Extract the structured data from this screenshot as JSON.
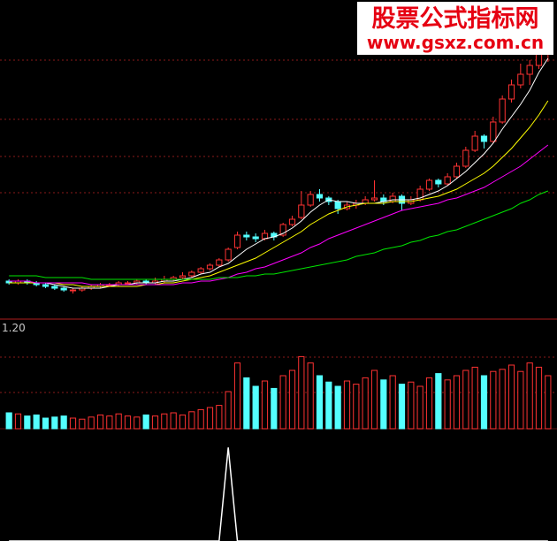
{
  "watermark": {
    "title": "股票公式指标网",
    "url": "www.gsxz.com.cn"
  },
  "chart_data": {
    "type": "candlestick",
    "ylim": [
      4,
      22
    ],
    "up_color": "#ff3232",
    "down_color": "#54ffff",
    "candles": [
      [
        6.1,
        6.2,
        5.9,
        6.0
      ],
      [
        6.0,
        6.2,
        5.9,
        6.1
      ],
      [
        6.1,
        6.2,
        5.9,
        6.0
      ],
      [
        6.0,
        6.1,
        5.8,
        5.9
      ],
      [
        5.9,
        6.0,
        5.7,
        5.8
      ],
      [
        5.8,
        5.9,
        5.6,
        5.7
      ],
      [
        5.7,
        5.8,
        5.5,
        5.6
      ],
      [
        5.6,
        5.7,
        5.4,
        5.6
      ],
      [
        5.6,
        5.8,
        5.5,
        5.7
      ],
      [
        5.7,
        5.9,
        5.6,
        5.8
      ],
      [
        5.8,
        6.0,
        5.7,
        5.9
      ],
      [
        5.9,
        6.0,
        5.8,
        5.9
      ],
      [
        5.9,
        6.1,
        5.8,
        6.0
      ],
      [
        6.0,
        6.1,
        5.9,
        6.0
      ],
      [
        6.0,
        6.2,
        5.9,
        6.1
      ],
      [
        6.1,
        6.2,
        5.9,
        6.0
      ],
      [
        6.0,
        6.3,
        5.9,
        6.1
      ],
      [
        6.1,
        6.4,
        6.0,
        6.2
      ],
      [
        6.2,
        6.4,
        6.1,
        6.3
      ],
      [
        6.3,
        6.6,
        6.2,
        6.4
      ],
      [
        6.4,
        6.7,
        6.3,
        6.6
      ],
      [
        6.6,
        6.9,
        6.5,
        6.8
      ],
      [
        6.8,
        7.1,
        6.7,
        7.0
      ],
      [
        7.0,
        7.4,
        6.9,
        7.3
      ],
      [
        7.3,
        8.0,
        7.2,
        7.9
      ],
      [
        8.0,
        8.9,
        7.9,
        8.7
      ],
      [
        8.7,
        8.9,
        8.4,
        8.6
      ],
      [
        8.6,
        8.8,
        8.3,
        8.5
      ],
      [
        8.5,
        9.0,
        8.4,
        8.8
      ],
      [
        8.8,
        8.9,
        8.4,
        8.6
      ],
      [
        8.7,
        9.4,
        8.6,
        9.3
      ],
      [
        9.3,
        9.8,
        9.2,
        9.6
      ],
      [
        9.7,
        11.2,
        9.6,
        10.4
      ],
      [
        10.4,
        11.2,
        10.3,
        11.0
      ],
      [
        11.0,
        11.3,
        10.6,
        10.8
      ],
      [
        10.8,
        10.9,
        10.4,
        10.6
      ],
      [
        10.6,
        10.7,
        9.9,
        10.2
      ],
      [
        10.2,
        10.6,
        10.1,
        10.4
      ],
      [
        10.4,
        10.7,
        10.2,
        10.5
      ],
      [
        10.5,
        10.9,
        10.4,
        10.7
      ],
      [
        10.7,
        11.8,
        10.6,
        10.8
      ],
      [
        10.8,
        11.0,
        10.4,
        10.6
      ],
      [
        10.6,
        11.1,
        10.5,
        10.9
      ],
      [
        10.9,
        11.0,
        10.1,
        10.5
      ],
      [
        10.5,
        10.9,
        10.4,
        10.7
      ],
      [
        10.7,
        11.5,
        10.6,
        11.3
      ],
      [
        11.3,
        11.9,
        11.2,
        11.8
      ],
      [
        11.8,
        11.9,
        11.4,
        11.6
      ],
      [
        11.6,
        12.2,
        11.5,
        12.0
      ],
      [
        12.0,
        12.8,
        11.9,
        12.6
      ],
      [
        12.6,
        13.7,
        12.5,
        13.5
      ],
      [
        13.5,
        14.6,
        13.4,
        14.3
      ],
      [
        14.3,
        14.4,
        13.6,
        14.0
      ],
      [
        14.0,
        15.4,
        13.9,
        15.1
      ],
      [
        15.1,
        16.6,
        15.0,
        16.4
      ],
      [
        16.4,
        17.5,
        16.2,
        17.2
      ],
      [
        17.2,
        18.4,
        17.0,
        17.8
      ],
      [
        17.8,
        18.6,
        17.2,
        18.3
      ],
      [
        18.3,
        20.4,
        18.1,
        19.6
      ],
      [
        19.6,
        21.2,
        18.5,
        20.5
      ]
    ],
    "series": [
      {
        "color": "#ffffff",
        "values": [
          6.0,
          6.0,
          6.0,
          6.0,
          6.0,
          5.9,
          5.8,
          5.7,
          5.7,
          5.7,
          5.7,
          5.8,
          5.9,
          5.9,
          6.0,
          6.0,
          6.0,
          6.1,
          6.1,
          6.2,
          6.3,
          6.5,
          6.6,
          6.9,
          7.1,
          7.5,
          7.9,
          8.2,
          8.5,
          8.6,
          8.8,
          9.1,
          9.5,
          10.0,
          10.4,
          10.7,
          10.6,
          10.6,
          10.5,
          10.5,
          10.5,
          10.6,
          10.7,
          10.7,
          10.7,
          10.8,
          11.0,
          11.2,
          11.5,
          11.9,
          12.3,
          12.8,
          13.3,
          13.9,
          14.7,
          15.4,
          16.1,
          16.9,
          17.9,
          18.7
        ]
      },
      {
        "color": "#ffff00",
        "values": [
          6.0,
          6.0,
          6.0,
          6.0,
          6.0,
          6.0,
          5.9,
          5.9,
          5.8,
          5.8,
          5.8,
          5.8,
          5.8,
          5.8,
          5.8,
          5.9,
          5.9,
          6.0,
          6.0,
          6.1,
          6.2,
          6.3,
          6.4,
          6.6,
          6.8,
          7.0,
          7.2,
          7.4,
          7.7,
          8.0,
          8.3,
          8.6,
          8.9,
          9.3,
          9.6,
          9.9,
          10.1,
          10.3,
          10.4,
          10.5,
          10.5,
          10.5,
          10.6,
          10.6,
          10.6,
          10.7,
          10.8,
          10.9,
          11.1,
          11.3,
          11.6,
          11.9,
          12.2,
          12.6,
          13.1,
          13.6,
          14.2,
          14.8,
          15.5,
          16.3
        ]
      },
      {
        "color": "#ff00ff",
        "values": [
          6.1,
          6.1,
          6.1,
          6.0,
          6.0,
          6.0,
          6.0,
          6.0,
          6.0,
          5.9,
          5.9,
          5.9,
          5.9,
          5.9,
          5.9,
          5.9,
          5.9,
          5.9,
          5.9,
          6.0,
          6.0,
          6.1,
          6.1,
          6.2,
          6.3,
          6.5,
          6.6,
          6.8,
          6.9,
          7.1,
          7.3,
          7.5,
          7.7,
          8.0,
          8.2,
          8.5,
          8.7,
          8.9,
          9.1,
          9.3,
          9.5,
          9.7,
          9.9,
          10.1,
          10.2,
          10.3,
          10.4,
          10.5,
          10.7,
          10.8,
          11.0,
          11.2,
          11.4,
          11.7,
          12.0,
          12.3,
          12.6,
          13.0,
          13.4,
          13.8
        ]
      },
      {
        "color": "#00e600",
        "values": [
          6.4,
          6.4,
          6.4,
          6.4,
          6.3,
          6.3,
          6.3,
          6.3,
          6.3,
          6.2,
          6.2,
          6.2,
          6.2,
          6.2,
          6.2,
          6.2,
          6.2,
          6.2,
          6.2,
          6.2,
          6.2,
          6.2,
          6.2,
          6.3,
          6.3,
          6.3,
          6.4,
          6.4,
          6.5,
          6.5,
          6.6,
          6.7,
          6.8,
          6.9,
          7.0,
          7.1,
          7.2,
          7.3,
          7.5,
          7.6,
          7.7,
          7.9,
          8.0,
          8.1,
          8.3,
          8.4,
          8.6,
          8.7,
          8.9,
          9.0,
          9.2,
          9.4,
          9.6,
          9.8,
          10.0,
          10.2,
          10.5,
          10.7,
          11.0,
          11.2
        ]
      }
    ],
    "volume": {
      "ylim": [
        0,
        100
      ],
      "values": [
        15,
        14,
        12,
        13,
        10,
        11,
        12,
        10,
        9,
        11,
        13,
        12,
        14,
        12,
        11,
        13,
        12,
        14,
        15,
        13,
        16,
        18,
        20,
        22,
        35,
        62,
        48,
        40,
        45,
        38,
        50,
        55,
        68,
        62,
        50,
        44,
        40,
        45,
        42,
        48,
        55,
        46,
        50,
        42,
        44,
        40,
        48,
        52,
        46,
        50,
        55,
        58,
        50,
        54,
        56,
        60,
        54,
        62,
        58,
        50
      ]
    },
    "indicator": {
      "label": "1.20",
      "ylim": [
        0,
        1.2
      ],
      "color": "#ffffff",
      "values": [
        0,
        0,
        0,
        0,
        0,
        0,
        0,
        0,
        0,
        0,
        0,
        0,
        0,
        0,
        0,
        0,
        0,
        0,
        0,
        0,
        0,
        0,
        0,
        0,
        1,
        0,
        0,
        0,
        0,
        0,
        0,
        0,
        0,
        0,
        0,
        0,
        0,
        0,
        0,
        0,
        0,
        0,
        0,
        0,
        0,
        0,
        0,
        0,
        0,
        0,
        0,
        0,
        0,
        0,
        0,
        0,
        0,
        0,
        0,
        0
      ]
    }
  }
}
